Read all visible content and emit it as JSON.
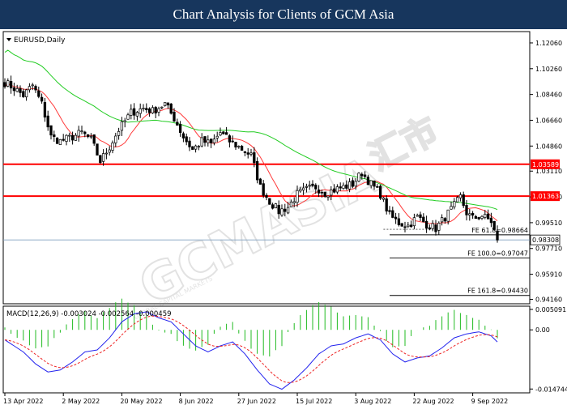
{
  "header": {
    "title": "Chart Analysis for Clients of GCM Asia"
  },
  "watermark": {
    "brand": "GCMASIA",
    "cn": "汇市",
    "sub": "GLOBAL CAPITAL MARKETS"
  },
  "chart_data": {
    "type": "candlestick",
    "symbol_label": "EURUSD,Daily",
    "price_axis": {
      "ticks": [
        "1.12060",
        "1.10260",
        "1.08460",
        "1.06660",
        "1.04860",
        "1.03110",
        "1.01310",
        "0.99510",
        "0.97710",
        "0.95910",
        "0.94160"
      ],
      "tick_values": [
        1.1206,
        1.1026,
        1.0846,
        1.0666,
        1.0486,
        1.0311,
        1.0131,
        0.9951,
        0.9771,
        0.9591,
        0.9416
      ],
      "ylim": [
        0.9385,
        1.1285
      ]
    },
    "date_axis": {
      "labels": [
        "13 Apr 2022",
        "2 May 2022",
        "20 May 2022",
        "8 Jun 2022",
        "27 Jun 2022",
        "15 Jul 2022",
        "3 Aug 2022",
        "22 Aug 2022",
        "9 Sep 2022"
      ],
      "label_bar_index": [
        0,
        19,
        38,
        57,
        76,
        95,
        114,
        133,
        152
      ],
      "total_bars": 171
    },
    "horizontal_levels": [
      {
        "value": 1.03589,
        "label": "1.03589",
        "color": "#ff0000"
      },
      {
        "value": 1.01363,
        "label": "1.01363",
        "color": "#ff0000"
      },
      {
        "value": 0.98308,
        "label": "0.98308",
        "color": "#000000",
        "current": true
      }
    ],
    "fibonacci": [
      {
        "label": "FE 61.8=0.98664",
        "value": 0.98664
      },
      {
        "label": "FE 100.0=0.97047",
        "value": 0.97047
      },
      {
        "label": "FE 161.8=0.94430",
        "value": 0.9443
      }
    ],
    "ma_fast_color": "#ff3a3a",
    "ma_slow_color": "#22cc22",
    "candle_up_color": "#ffffff",
    "candle_down_color": "#000000",
    "price_anchors": [
      [
        0,
        1.093
      ],
      [
        3,
        1.089
      ],
      [
        6,
        1.084
      ],
      [
        9,
        1.091
      ],
      [
        12,
        1.078
      ],
      [
        15,
        1.055
      ],
      [
        18,
        1.052
      ],
      [
        22,
        1.055
      ],
      [
        25,
        1.058
      ],
      [
        28,
        1.053
      ],
      [
        31,
        1.038
      ],
      [
        34,
        1.048
      ],
      [
        37,
        1.06
      ],
      [
        41,
        1.072
      ],
      [
        45,
        1.075
      ],
      [
        48,
        1.073
      ],
      [
        52,
        1.078
      ],
      [
        55,
        1.068
      ],
      [
        58,
        1.055
      ],
      [
        61,
        1.046
      ],
      [
        64,
        1.052
      ],
      [
        67,
        1.05
      ],
      [
        70,
        1.058
      ],
      [
        73,
        1.052
      ],
      [
        76,
        1.048
      ],
      [
        80,
        1.042
      ],
      [
        83,
        1.02
      ],
      [
        86,
        1.01
      ],
      [
        89,
        1.003
      ],
      [
        92,
        1.006
      ],
      [
        95,
        1.015
      ],
      [
        98,
        1.018
      ],
      [
        101,
        1.02
      ],
      [
        104,
        1.016
      ],
      [
        107,
        1.018
      ],
      [
        110,
        1.02
      ],
      [
        113,
        1.022
      ],
      [
        116,
        1.03
      ],
      [
        119,
        1.022
      ],
      [
        122,
        1.015
      ],
      [
        125,
        1.0
      ],
      [
        128,
        0.995
      ],
      [
        131,
        0.993
      ],
      [
        134,
        0.999
      ],
      [
        137,
        0.994
      ],
      [
        140,
        0.991
      ],
      [
        143,
        0.999
      ],
      [
        146,
        1.007
      ],
      [
        148,
        1.013
      ],
      [
        150,
        1.002
      ],
      [
        152,
        0.998
      ],
      [
        155,
        1.0
      ],
      [
        158,
        0.996
      ],
      [
        160,
        0.983
      ]
    ],
    "macd": {
      "label": "MACD(12,26,9) -0.003024 -0.002564 -0.000459",
      "ticks": [
        "0.005091",
        "0.00",
        "-0.014744"
      ],
      "tick_values": [
        0.005091,
        0.0,
        -0.014744
      ],
      "ylim": [
        -0.0157,
        0.0059
      ],
      "hist_color": "#22bb22",
      "macd_color": "#2222ee",
      "signal_color": "#ee2222",
      "anchors": [
        [
          0,
          -0.0025
        ],
        [
          6,
          -0.0055
        ],
        [
          10,
          -0.0085
        ],
        [
          14,
          -0.0105
        ],
        [
          18,
          -0.01
        ],
        [
          22,
          -0.008
        ],
        [
          26,
          -0.0055
        ],
        [
          30,
          -0.005
        ],
        [
          34,
          -0.002
        ],
        [
          38,
          0.002
        ],
        [
          42,
          0.004
        ],
        [
          46,
          0.0045
        ],
        [
          50,
          0.003
        ],
        [
          54,
          0.002
        ],
        [
          58,
          -0.001
        ],
        [
          62,
          -0.004
        ],
        [
          66,
          -0.0055
        ],
        [
          70,
          -0.004
        ],
        [
          74,
          -0.003
        ],
        [
          78,
          -0.006
        ],
        [
          82,
          -0.01
        ],
        [
          86,
          -0.0135
        ],
        [
          90,
          -0.0148
        ],
        [
          94,
          -0.0125
        ],
        [
          98,
          -0.0095
        ],
        [
          102,
          -0.006
        ],
        [
          106,
          -0.004
        ],
        [
          110,
          -0.0035
        ],
        [
          114,
          -0.002
        ],
        [
          118,
          -0.001
        ],
        [
          122,
          -0.0025
        ],
        [
          126,
          -0.006
        ],
        [
          130,
          -0.008
        ],
        [
          134,
          -0.007
        ],
        [
          138,
          -0.0065
        ],
        [
          142,
          -0.0045
        ],
        [
          146,
          -0.002
        ],
        [
          150,
          -0.001
        ],
        [
          154,
          -0.0005
        ],
        [
          158,
          -0.0015
        ],
        [
          160,
          -0.003
        ]
      ]
    }
  }
}
